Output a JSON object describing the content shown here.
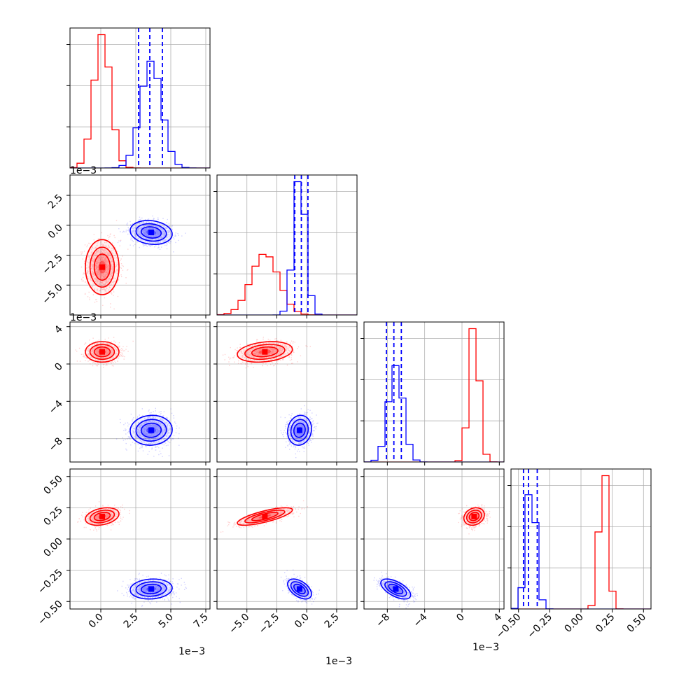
{
  "colors": {
    "series_a": "#ff0000",
    "series_b": "#0000ff",
    "grid": "#b0b0b0",
    "axes": "#000000"
  },
  "chart_data": {
    "type": "corner",
    "grid": true,
    "dimensions": [
      {
        "range": [
          -2.2,
          7.8
        ],
        "ticks": [
          0.0,
          2.5,
          5.0,
          7.5
        ],
        "tick_labels": [
          "0.0",
          "2.5",
          "5.0",
          "7.5"
        ],
        "offset_text": "1e−3"
      },
      {
        "range": [
          -7.5,
          4.2
        ],
        "ticks": [
          -5.0,
          -2.5,
          0.0,
          2.5
        ],
        "tick_labels": [
          "−5.0",
          "−2.5",
          "0.0",
          "2.5"
        ],
        "offset_text": "1e−3"
      },
      {
        "range": [
          -10.5,
          4.5
        ],
        "ticks": [
          -8,
          -4,
          0,
          4
        ],
        "tick_labels": [
          "−8",
          "−4",
          "0",
          "4"
        ],
        "offset_text": "1e−3"
      },
      {
        "range": [
          -0.56,
          0.56
        ],
        "ticks": [
          -0.5,
          -0.25,
          0.0,
          0.25,
          0.5
        ],
        "tick_labels": [
          "−0.50",
          "−0.25",
          "0.00",
          "0.25",
          "0.50"
        ],
        "offset_text": ""
      }
    ],
    "series": [
      {
        "color": "#ff0000",
        "means": [
          0.1,
          -3.5,
          1.3,
          0.18
        ],
        "sds": [
          0.6,
          1.15,
          0.55,
          0.035
        ],
        "corr": [
          [
            0,
            1,
            0.0
          ],
          [
            0,
            2,
            0.0
          ],
          [
            0,
            3,
            0.3
          ],
          [
            1,
            2,
            0.25
          ],
          [
            1,
            3,
            0.75
          ],
          [
            2,
            3,
            0.2
          ]
        ]
      },
      {
        "color": "#0000ff",
        "means": [
          3.6,
          -0.6,
          -7.1,
          -0.4
        ],
        "sds": [
          0.75,
          0.5,
          0.8,
          0.04
        ],
        "corr": [
          [
            0,
            1,
            -0.15
          ],
          [
            0,
            2,
            0.05
          ],
          [
            0,
            3,
            0.1
          ],
          [
            1,
            2,
            0.1
          ],
          [
            1,
            3,
            -0.5
          ],
          [
            2,
            3,
            -0.6
          ]
        ]
      }
    ],
    "quantile_lines": [
      {
        "dimension": 0,
        "values": [
          2.7,
          3.5,
          4.4
        ],
        "color": "#0000ff"
      },
      {
        "dimension": 1,
        "values": [
          -1.0,
          -0.45,
          0.1
        ],
        "color": "#0000ff"
      },
      {
        "dimension": 2,
        "values": [
          -8.1,
          -7.3,
          -6.5
        ],
        "color": "#0000ff"
      },
      {
        "dimension": 3,
        "values": [
          -0.46,
          -0.42,
          -0.35
        ],
        "color": "#0000ff"
      }
    ]
  }
}
